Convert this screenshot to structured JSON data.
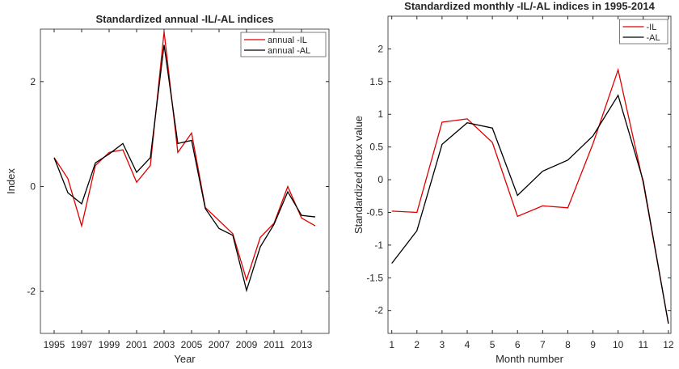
{
  "chart_data": [
    {
      "type": "line",
      "title": "Standardized annual -IL/-AL indices",
      "x_label": "Year",
      "y_label": "Index",
      "x": [
        1995,
        1996,
        1997,
        1998,
        1999,
        2000,
        2001,
        2002,
        2003,
        2004,
        2005,
        2006,
        2007,
        2008,
        2009,
        2010,
        2011,
        2012,
        2013,
        2014
      ],
      "series": [
        {
          "name": "annual -IL",
          "color": "#e00000",
          "values": [
            0.55,
            0.15,
            -0.75,
            0.4,
            0.65,
            0.7,
            0.08,
            0.4,
            2.95,
            0.65,
            1.02,
            -0.4,
            -0.65,
            -0.9,
            -1.78,
            -0.97,
            -0.7,
            0.0,
            -0.6,
            -0.75
          ]
        },
        {
          "name": "annual -AL",
          "color": "#000000",
          "values": [
            0.55,
            -0.12,
            -0.33,
            0.45,
            0.62,
            0.82,
            0.27,
            0.55,
            2.7,
            0.82,
            0.88,
            -0.42,
            -0.8,
            -0.93,
            -1.98,
            -1.15,
            -0.72,
            -0.1,
            -0.55,
            -0.58
          ]
        }
      ],
      "xlim": [
        1994,
        2015
      ],
      "xticks": [
        1995,
        1997,
        1999,
        2001,
        2003,
        2005,
        2007,
        2009,
        2011,
        2013
      ],
      "ylim": [
        -2.8,
        3
      ],
      "yticks": [
        -2,
        0,
        2
      ],
      "legend": "top-right"
    },
    {
      "type": "line",
      "title": "Standardized monthly -IL/-AL indices in 1995-2014",
      "x_label": "Month number",
      "y_label": "Standardized index value",
      "x": [
        1,
        2,
        3,
        4,
        5,
        6,
        7,
        8,
        9,
        10,
        11,
        12
      ],
      "series": [
        {
          "name": "-IL",
          "color": "#e00000",
          "values": [
            -0.48,
            -0.5,
            0.88,
            0.93,
            0.57,
            -0.56,
            -0.4,
            -0.43,
            0.55,
            1.68,
            -0.05,
            -2.2
          ]
        },
        {
          "name": "-AL",
          "color": "#000000",
          "values": [
            -1.28,
            -0.78,
            0.54,
            0.87,
            0.79,
            -0.24,
            0.13,
            0.3,
            0.67,
            1.29,
            -0.02,
            -2.2
          ]
        }
      ],
      "xlim": [
        0.85,
        12.1
      ],
      "xticks": [
        1,
        2,
        3,
        4,
        5,
        6,
        7,
        8,
        9,
        10,
        11,
        12
      ],
      "ylim": [
        -2.35,
        2.5
      ],
      "yticks": [
        -2,
        -1.5,
        -1,
        -0.5,
        0,
        0.5,
        1,
        1.5,
        2
      ],
      "legend": "top-right"
    }
  ]
}
